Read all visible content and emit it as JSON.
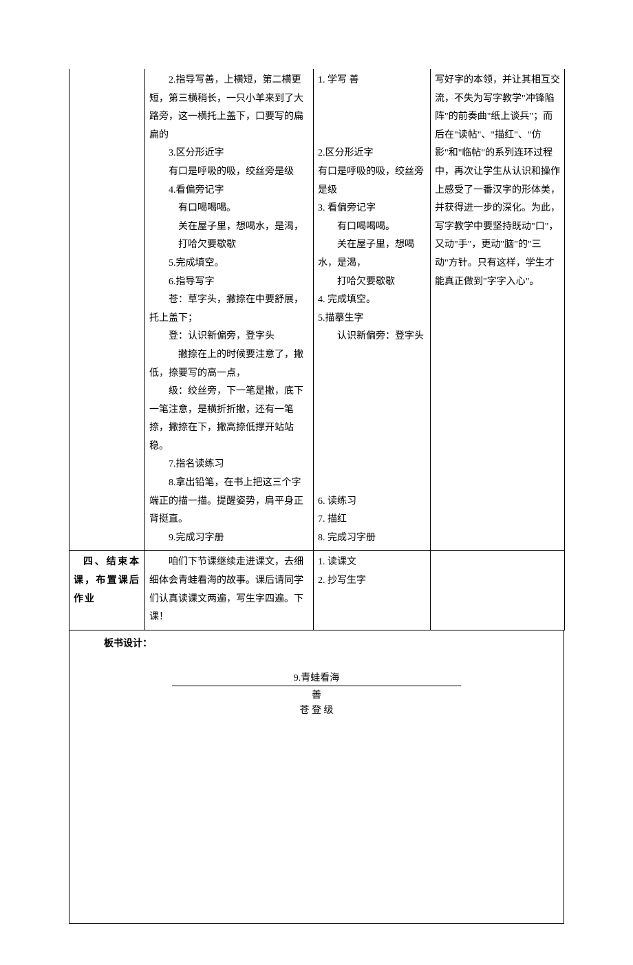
{
  "table": {
    "row1": {
      "col1": "",
      "col2_lines": [
        "2.指导写善，上横短，第二横更短，第三横稍长，一只小羊来到了大路旁，这一横托上盖下，口要写的扁扁的",
        "3.区分形近字",
        "有口是呼吸的吸，绞丝旁是级",
        "4.看偏旁记字",
        "有口喝喝喝。",
        "关在屋子里，想喝水，是渴，",
        "打哈欠要歇歇",
        "5.完成填空。",
        "6.指导写字",
        "苍：草字头，撇捺在中要舒展，托上盖下；",
        "登：认识新偏旁，登字头",
        "撇捺在上的时候要注意了，撇低，捺要写的高一点，",
        "级：绞丝旁，下一笔是撇，底下一笔注意，是横折折撇，还有一笔捺，撇捺在下，撇高捺低撑开站站稳。",
        "7.指名读练习",
        "8.拿出铅笔，在书上把这三个字端正的描一描。提醒姿势，肩平身正背挺直。",
        "9.完成习字册"
      ],
      "col3_lines": [
        "1.  学写 善",
        "",
        "",
        "",
        "2.区分形近字",
        "  有口是呼吸的吸，绞丝旁是级",
        "3.  看偏旁记字",
        "有口喝喝喝。",
        "关在屋子里，想喝水，是渴，",
        "打哈欠要歇歇",
        "4.  完成填空。",
        "5.描摹生字",
        "认识新偏旁：登字头",
        "",
        "",
        "",
        "",
        "",
        "",
        "",
        "",
        "6.  读练习",
        "7.  描红",
        "8.  完成习字册"
      ],
      "col4_lines": [
        "写好字的本领，并让其相互交流，不失为写字教学\"冲锋陷阵\"的前奏曲\"纸上谈兵\"；而后在\"读帖\"、\"描红\"、\"仿影\"和\"临帖\"的系列连环过程中，再次让学生从认识和操作上感受了一番汉字的形体美，并获得进一步的深化。为此，写字教学中要坚持既动\"口\"，又动\"手\"，更动\"脑\"的\"三动\"方针。只有这样，学生才能真正做到\"字字入心\"。"
      ]
    },
    "row2": {
      "col1": "四、结束本课，布置课后作业",
      "col2": "咱们下节课继续走进课文，去细细体会青蛙看海的故事。课后请同学们认真读课文两遍，写生字四遍。下课！",
      "col3_lines": [
        "1.  读课文",
        "2.  抄写生字"
      ],
      "col4": ""
    }
  },
  "board": {
    "label": "板书设计：",
    "title": "9.青蛙看海",
    "line1": "善",
    "line2": "苍    登    级"
  }
}
